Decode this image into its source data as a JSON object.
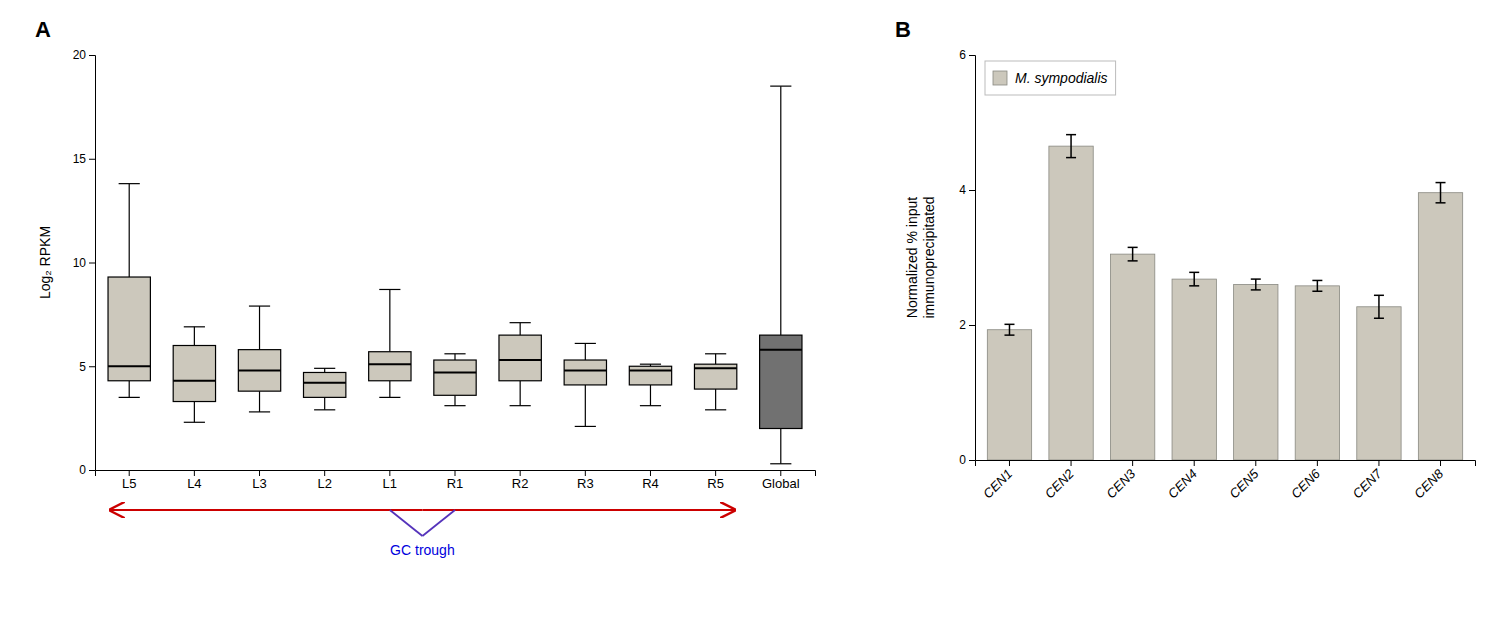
{
  "chart_data": [
    {
      "type": "box",
      "title": "A",
      "ylabel": "Log₂ RPKM",
      "categories": [
        "L5",
        "L4",
        "L3",
        "L2",
        "L1",
        "R1",
        "R2",
        "R3",
        "R4",
        "R5",
        "Global"
      ],
      "whislo": [
        3.5,
        2.3,
        2.8,
        2.9,
        3.5,
        3.1,
        3.1,
        2.1,
        3.1,
        2.9,
        0.3
      ],
      "q1": [
        4.3,
        3.3,
        3.8,
        3.5,
        4.3,
        3.6,
        4.3,
        4.1,
        4.1,
        3.9,
        2.0
      ],
      "med": [
        5.0,
        4.3,
        4.8,
        4.2,
        5.1,
        4.7,
        5.3,
        4.8,
        4.8,
        4.9,
        5.8
      ],
      "q3": [
        9.3,
        6.0,
        5.8,
        4.7,
        5.7,
        5.3,
        6.5,
        5.3,
        5.0,
        5.1,
        6.5
      ],
      "whishi": [
        13.8,
        6.9,
        7.9,
        4.9,
        8.7,
        5.6,
        7.1,
        6.1,
        5.1,
        5.6,
        18.5
      ],
      "colors": [
        "#ccc8bc",
        "#ccc8bc",
        "#ccc8bc",
        "#ccc8bc",
        "#ccc8bc",
        "#ccc8bc",
        "#ccc8bc",
        "#ccc8bc",
        "#ccc8bc",
        "#ccc8bc",
        "#717171"
      ],
      "ylim": [
        0,
        20
      ],
      "yticks": [
        0,
        5,
        10,
        15,
        20
      ],
      "annotations": [
        {
          "text": "GC trough",
          "color": "#0000dd",
          "arrow_color": "#cc0000",
          "v_color": "#5533bb",
          "span": [
            "L5",
            "R5"
          ],
          "trough": [
            "L1",
            "R1"
          ]
        }
      ]
    },
    {
      "type": "bar",
      "title": "B",
      "ylabel": "Normalized % input\nimmunoprecipitated",
      "categories": [
        "CEN1",
        "CEN2",
        "CEN3",
        "CEN4",
        "CEN5",
        "CEN6",
        "CEN7",
        "CEN8"
      ],
      "series": [
        {
          "name": "M. sympodialis",
          "color": "#ccc8bc",
          "values": [
            1.93,
            4.65,
            3.05,
            2.68,
            2.6,
            2.58,
            2.27,
            3.96
          ],
          "errors": [
            0.08,
            0.17,
            0.1,
            0.1,
            0.08,
            0.08,
            0.17,
            0.15
          ]
        }
      ],
      "ylim": [
        0,
        6
      ],
      "yticks": [
        0,
        2,
        4,
        6
      ],
      "legend": "upper left"
    }
  ]
}
